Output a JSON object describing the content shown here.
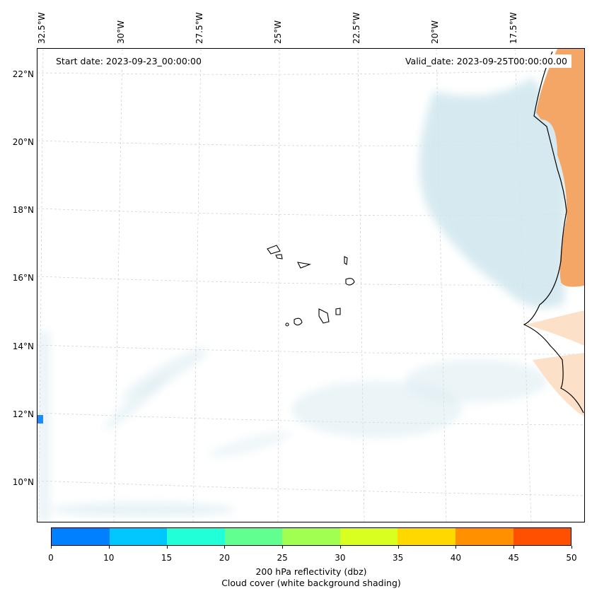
{
  "longitude_labels": [
    "32.5°W",
    "30°W",
    "27.5°W",
    "25°W",
    "22.5°W",
    "20°W",
    "17.5°W"
  ],
  "latitude_labels": [
    "22°N",
    "20°N",
    "18°N",
    "16°N",
    "14°N",
    "12°N",
    "10°N"
  ],
  "start_date": "Start date: 2023-09-23_00:00:00",
  "valid_date": "Valid_date: 2023-09-25T00:00:00.00",
  "colorbar": {
    "ticks": [
      "0",
      "10",
      "15",
      "20",
      "25",
      "30",
      "35",
      "40",
      "45",
      "50"
    ],
    "colors": [
      "#0080ff",
      "#00c8ff",
      "#20ffd8",
      "#60ff90",
      "#a0ff50",
      "#d8ff20",
      "#ffd800",
      "#ff9000",
      "#ff5000"
    ],
    "label": "200 hPa reflectivity (dbz)",
    "sublabel": "Cloud cover (white background shading)"
  },
  "colors": {
    "cloud": "#cfe6ee",
    "land_warm": "#f4a666",
    "coast": "#000000"
  }
}
